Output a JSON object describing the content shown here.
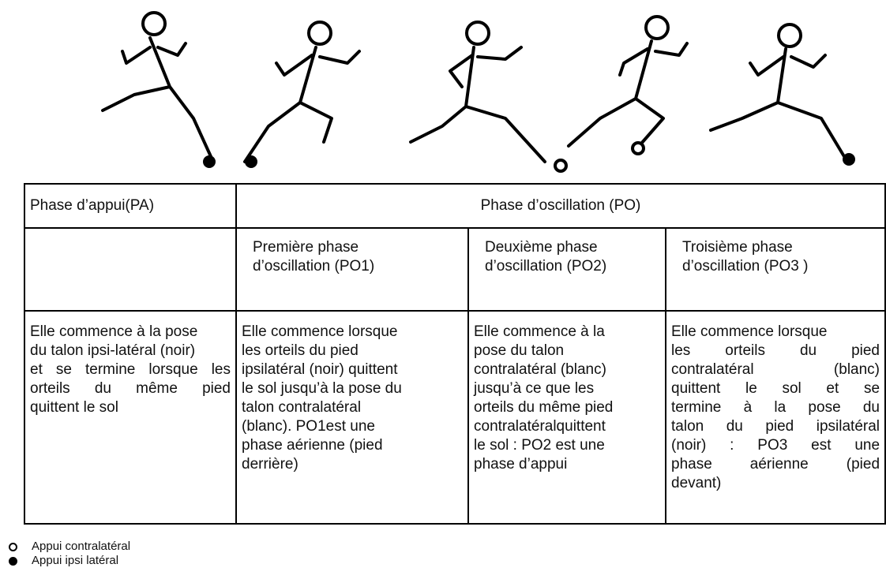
{
  "table": {
    "header": [
      "Phase d’appui(PA)",
      "Phase d’oscillation (PO)"
    ],
    "subheader": [
      [
        "Première phase",
        "d’oscillation (PO1)"
      ],
      [
        "Deuxième phase",
        "d’oscillation (PO2)"
      ],
      [
        "Troisième phase",
        "d’oscillation (PO3 )"
      ]
    ],
    "body": [
      [
        "Elle commence à la pose",
        "du talon ipsi-latéral (noir)",
        "et se termine lorsque les",
        "orteils du même pied",
        "quittent le sol"
      ],
      [
        "Elle commence lorsque",
        "les orteils du  pied",
        "ipsilatéral (noir) quittent",
        "le sol jusqu’à la pose du",
        "talon contralatéral",
        "(blanc). PO1est une",
        "phase aérienne (pied",
        "derrière)"
      ],
      [
        "Elle commence à la",
        "pose du talon",
        "contralatéral (blanc)",
        "jusqu’à ce que les",
        "orteils du même pied",
        "contralatéralquittent",
        "le sol : PO2 est une",
        "phase d’appui"
      ],
      [
        "Elle commence lorsque",
        "les orteils du pied",
        "contralatéral (blanc)",
        "quittent le sol et se",
        "termine à la pose du",
        "talon du pied ipsilatéral",
        "(noir) : PO3 est une",
        "phase aérienne (pied",
        "devant)"
      ]
    ]
  },
  "legend": [
    "Appui contralatéral",
    "Appui ipsi latéral"
  ]
}
